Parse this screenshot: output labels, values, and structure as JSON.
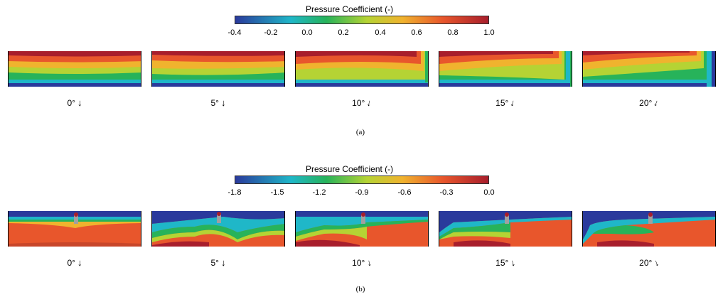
{
  "figure_a": {
    "colorbar_title": "Pressure Coefficient (-)",
    "ticks": [
      "-0.4",
      "-0.2",
      "0.0",
      "0.2",
      "0.4",
      "0.6",
      "0.8",
      "1.0"
    ],
    "angles": [
      "0°",
      "5°",
      "10°",
      "15°",
      "20°"
    ],
    "label": "(a)"
  },
  "figure_b": {
    "colorbar_title": "Pressure Coefficient (-)",
    "ticks": [
      "-1.8",
      "-1.5",
      "-1.2",
      "-0.9",
      "-0.6",
      "-0.3",
      "0.0"
    ],
    "angles": [
      "0°",
      "5°",
      "10°",
      "15°",
      "20°"
    ],
    "label": "(b)"
  },
  "colormap": [
    "#2a3a9c",
    "#1fb7c8",
    "#27b35a",
    "#b5d334",
    "#f0b32e",
    "#e8562c",
    "#a81e2c"
  ]
}
